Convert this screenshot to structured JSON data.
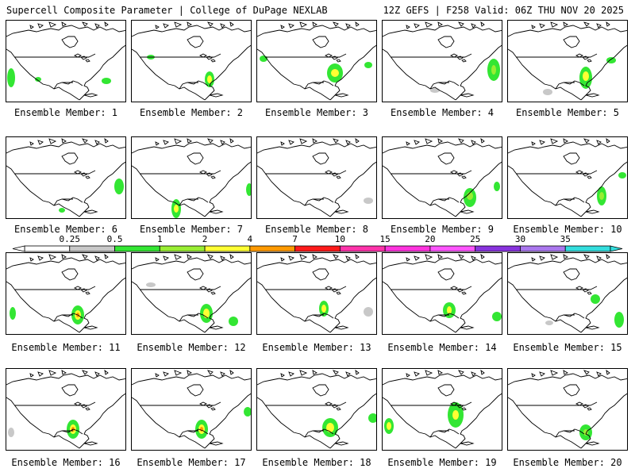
{
  "header": {
    "title": "Supercell Composite Parameter | College of DuPage NEXLAB",
    "run_info": "12Z GEFS | F258 Valid: 06Z THU NOV 20 2025"
  },
  "colorbar": {
    "ticks": [
      "0.25",
      "0.5",
      "1",
      "2",
      "4",
      "7",
      "10",
      "15",
      "20",
      "25",
      "30",
      "35"
    ],
    "colors": [
      "#ffffff",
      "#c8c8c8",
      "#33e633",
      "#99ee33",
      "#ffff33",
      "#ff9900",
      "#ff1a1a",
      "#ff33aa",
      "#ff33dd",
      "#ff55ff",
      "#8833dd",
      "#aa77ee",
      "#33dddd"
    ]
  },
  "members": [
    {
      "label": "Ensemble Member: 1"
    },
    {
      "label": "Ensemble Member: 2"
    },
    {
      "label": "Ensemble Member: 3"
    },
    {
      "label": "Ensemble Member: 4"
    },
    {
      "label": "Ensemble Member: 5"
    },
    {
      "label": "Ensemble Member: 6"
    },
    {
      "label": "Ensemble Member: 7"
    },
    {
      "label": "Ensemble Member: 8"
    },
    {
      "label": "Ensemble Member: 9"
    },
    {
      "label": "Ensemble Member: 10"
    },
    {
      "label": "Ensemble Member: 11"
    },
    {
      "label": "Ensemble Member: 12"
    },
    {
      "label": "Ensemble Member: 13"
    },
    {
      "label": "Ensemble Member: 14"
    },
    {
      "label": "Ensemble Member: 15"
    },
    {
      "label": "Ensemble Member: 16"
    },
    {
      "label": "Ensemble Member: 17"
    },
    {
      "label": "Ensemble Member: 18"
    },
    {
      "label": "Ensemble Member: 19"
    },
    {
      "label": "Ensemble Member: 20"
    }
  ]
}
